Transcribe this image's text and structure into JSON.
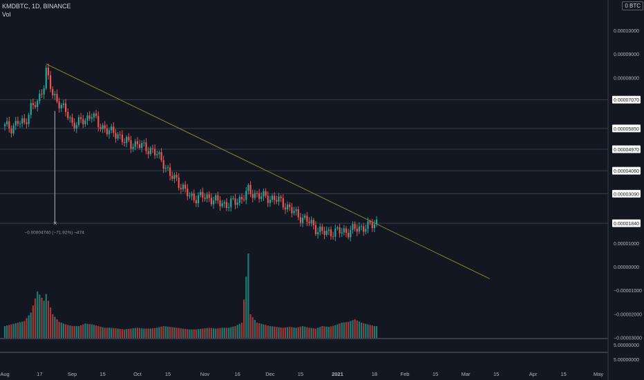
{
  "header": {
    "symbol_line": "KMDBTC, 1D, BINANCE",
    "volume_label": "Vol",
    "currency_badge": "0 BTC"
  },
  "colors": {
    "background": "#131722",
    "up": "#26a69a",
    "down": "#ef5350",
    "up_volume": "#1f7a70",
    "down_volume": "#a33a3a",
    "trendline": "#8a8a2e",
    "grid_line": "#3a3e4a",
    "text": "#d1d4dc"
  },
  "chart_data": {
    "type": "candlestick",
    "symbol": "KMDBTC",
    "interval": "1D",
    "exchange": "BINANCE",
    "y_ticks": [
      "0.00010000",
      "0.00009000",
      "0.00008000",
      "0.00007070",
      "0.00005850",
      "0.00004970",
      "0.00004060",
      "0.00003090",
      "0.00001840",
      "0.00001000",
      "0.00000000",
      "−0.00001000",
      "−0.00002000",
      "−0.00003000"
    ],
    "price_labels": [
      "0.00007070",
      "0.00005850",
      "0.00004970",
      "0.00004060",
      "0.00003090",
      "0.00001840"
    ],
    "extra_scale_labels": [
      "5.00000000",
      "5.00000000"
    ],
    "x_ticks": [
      "Aug",
      "17",
      "Sep",
      "15",
      "Oct",
      "15",
      "Nov",
      "16",
      "Dec",
      "15",
      "2021",
      "18",
      "Feb",
      "15",
      "Mar",
      "15",
      "Apr",
      "15",
      "May"
    ],
    "x_tick_dates": [
      "2020-08-01",
      "2020-08-17",
      "2020-09-01",
      "2020-09-15",
      "2020-10-01",
      "2020-10-15",
      "2020-11-01",
      "2020-11-16",
      "2020-12-01",
      "2020-12-15",
      "2021-01-01",
      "2021-01-18",
      "2021-02-01",
      "2021-02-15",
      "2021-03-01",
      "2021-03-15",
      "2021-04-01",
      "2021-04-15",
      "2021-05-01"
    ],
    "measure_label": "−0.00004740 (−71.92%) ¬474",
    "measure_from": {
      "date": "2020-08-24",
      "price": 6.59e-05
    },
    "measure_to": {
      "date": "2020-08-24",
      "price": 1.85e-05
    },
    "trendline": {
      "start": {
        "date": "2020-08-20",
        "price": 8.58e-05
      },
      "end": {
        "date": "2021-03-12",
        "price": -5.1e-06
      }
    },
    "volume_range": [
      0,
      100
    ],
    "candles": {
      "dates": [
        "2020-08-01",
        "2020-08-04",
        "2020-08-07",
        "2020-08-10",
        "2020-08-13",
        "2020-08-16",
        "2020-08-19",
        "2020-08-20",
        "2020-08-23",
        "2020-08-26",
        "2020-08-29",
        "2020-09-01",
        "2020-09-04",
        "2020-09-07",
        "2020-09-10",
        "2020-09-13",
        "2020-09-16",
        "2020-09-19",
        "2020-09-22",
        "2020-09-25",
        "2020-09-28",
        "2020-10-01",
        "2020-10-04",
        "2020-10-07",
        "2020-10-10",
        "2020-10-13",
        "2020-10-16",
        "2020-10-19",
        "2020-10-22",
        "2020-10-25",
        "2020-10-28",
        "2020-10-31",
        "2020-11-03",
        "2020-11-06",
        "2020-11-09",
        "2020-11-12",
        "2020-11-15",
        "2020-11-18",
        "2020-11-21",
        "2020-11-22",
        "2020-11-25",
        "2020-11-28",
        "2020-12-01",
        "2020-12-04",
        "2020-12-07",
        "2020-12-10",
        "2020-12-13",
        "2020-12-16",
        "2020-12-19",
        "2020-12-22",
        "2020-12-25",
        "2020-12-28",
        "2020-12-31",
        "2021-01-03",
        "2021-01-06",
        "2021-01-09",
        "2021-01-12",
        "2021-01-15",
        "2021-01-18",
        "2021-01-19"
      ],
      "close": [
        5.95e-05,
        5.88e-05,
        6.12e-05,
        6.05e-05,
        6.76e-05,
        6.9e-05,
        7.75e-05,
        8.3e-05,
        7.26e-05,
        6.95e-05,
        6.55e-05,
        6.05e-05,
        6.1e-05,
        6.2e-05,
        6.49e-05,
        6e-05,
        5.85e-05,
        5.67e-05,
        5.6e-05,
        5.3e-05,
        5.19e-05,
        5.2e-05,
        5.05e-05,
        4.95e-05,
        4.75e-05,
        4.4e-05,
        3.85e-05,
        3.68e-05,
        3.31e-05,
        2.97e-05,
        2.92e-05,
        2.97e-05,
        2.92e-05,
        2.78e-05,
        2.65e-05,
        2.65e-05,
        2.75e-05,
        2.9e-05,
        3.21e-05,
        3.12e-05,
        3.05e-05,
        2.95e-05,
        2.9e-05,
        2.85e-05,
        2.68e-05,
        2.45e-05,
        2.22e-05,
        2.05e-05,
        1.9e-05,
        1.62e-05,
        1.45e-05,
        1.45e-05,
        1.48e-05,
        1.5e-05,
        1.48e-05,
        1.6e-05,
        1.66e-05,
        1.69e-05,
        1.84e-05,
        1.9e-05
      ],
      "volume": [
        14,
        16,
        18,
        20,
        30,
        55,
        44,
        52,
        28,
        19,
        16,
        14,
        14,
        17,
        16,
        14,
        12,
        12,
        11,
        10,
        11,
        12,
        11,
        11,
        12,
        14,
        13,
        12,
        11,
        10,
        10,
        11,
        12,
        11,
        12,
        12,
        14,
        18,
        100,
        28,
        18,
        16,
        14,
        13,
        12,
        13,
        12,
        14,
        12,
        11,
        14,
        13,
        15,
        18,
        19,
        22,
        18,
        16,
        14,
        14
      ]
    }
  }
}
